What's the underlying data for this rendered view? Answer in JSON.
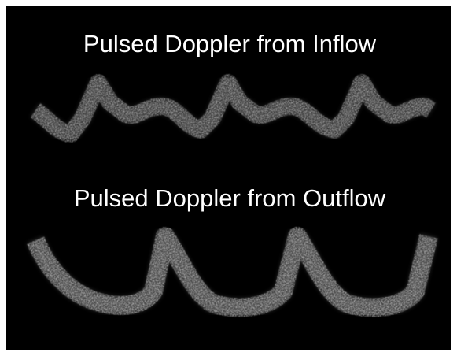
{
  "titles": [
    "Pulsed Doppler from Inflow",
    "Pulsed Doppler from Outflow"
  ]
}
